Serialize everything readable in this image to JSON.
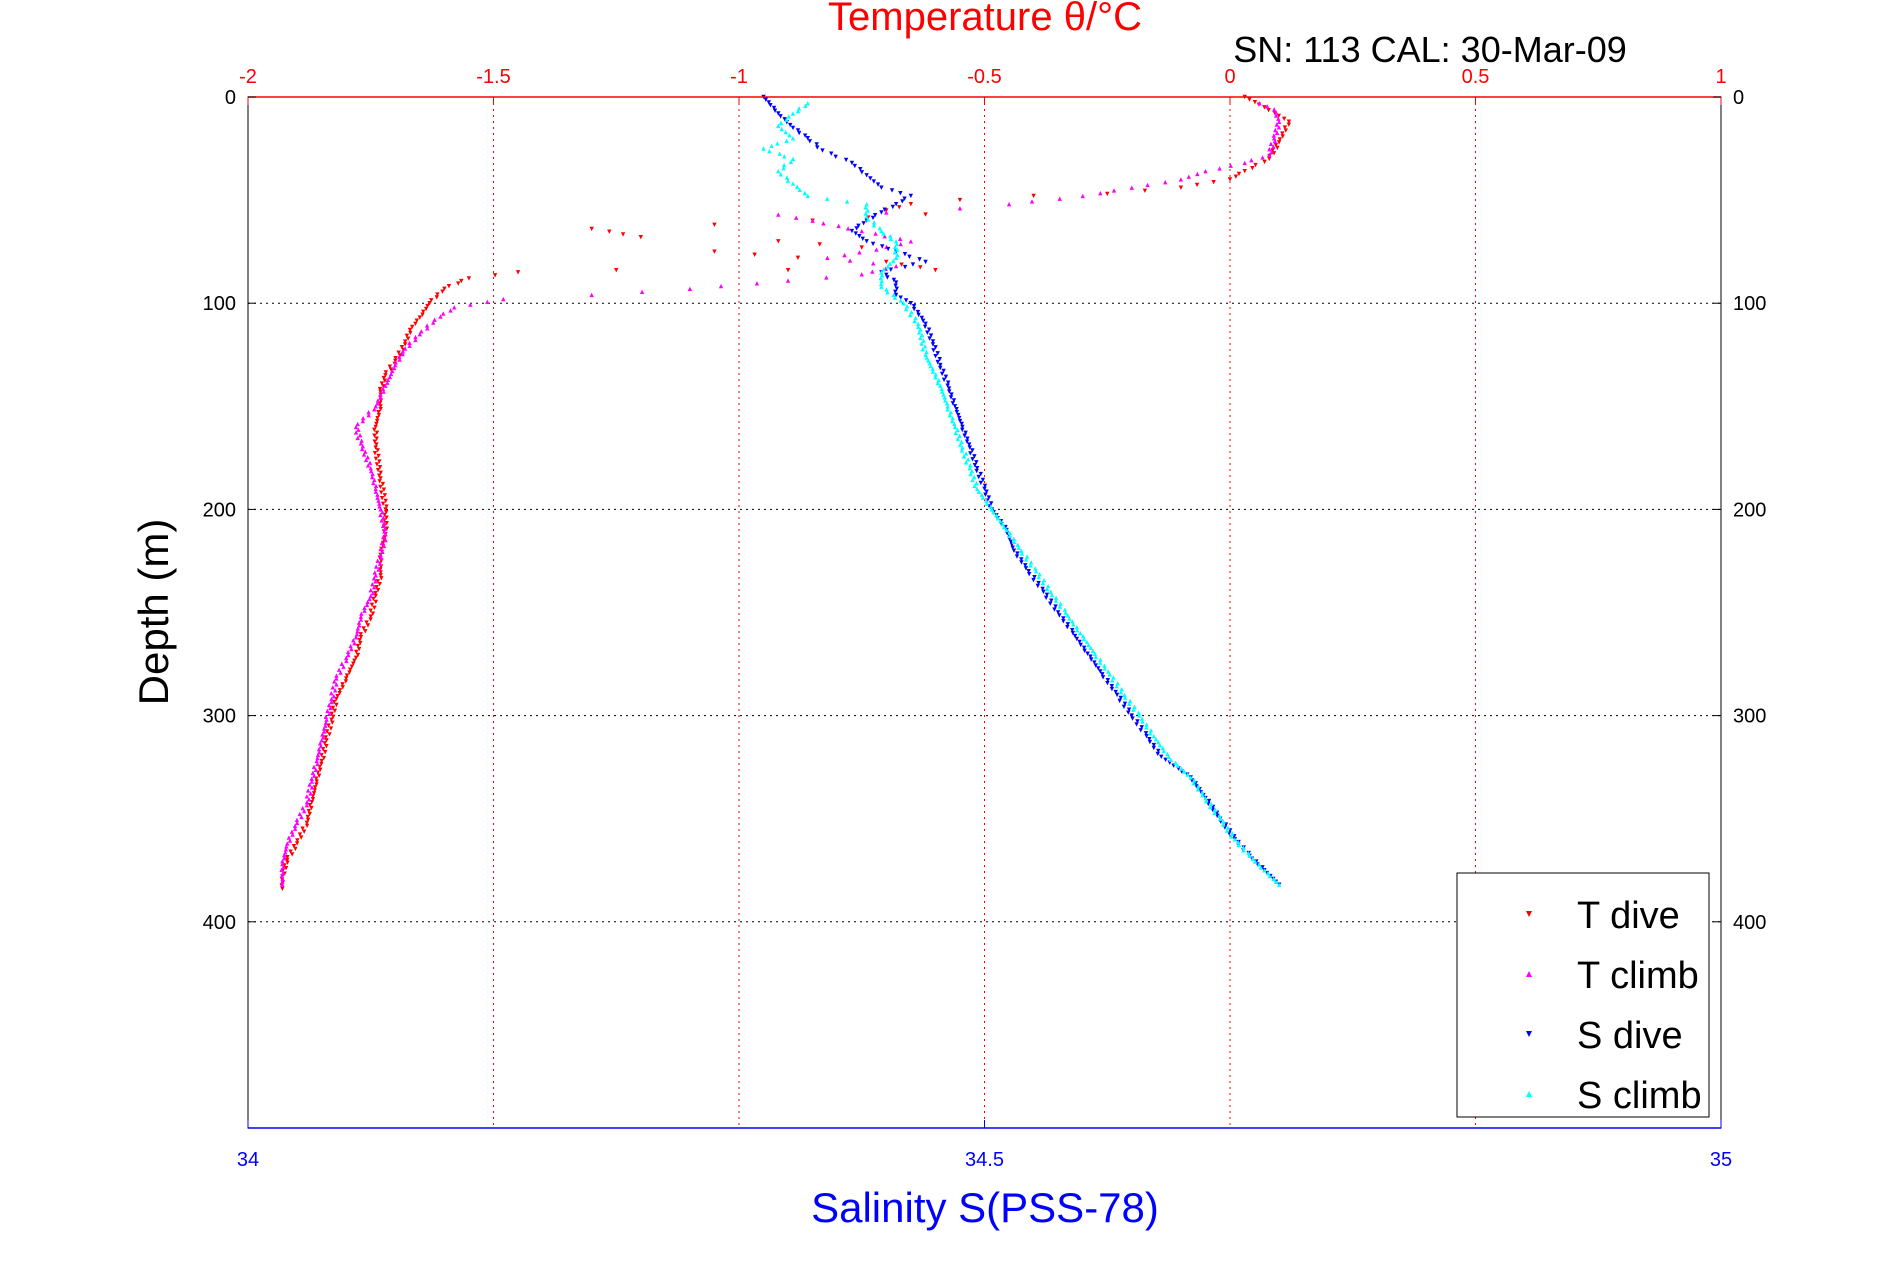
{
  "chart_data": {
    "type": "scatter",
    "title": "Temperature θ/°C",
    "subtitle": "SN: 113  CAL: 30-Mar-09",
    "ylabel": "Depth (m)",
    "xlabel_bottom": "Salinity S(PSS-78)",
    "x_top": {
      "label": "Temperature θ/°C",
      "range": [
        -2,
        1
      ],
      "ticks": [
        "-2",
        "-1.5",
        "-1",
        "-0.5",
        "0",
        "0.5",
        "1"
      ],
      "tick_values": [
        -2,
        -1.5,
        -1,
        -0.5,
        0,
        0.5,
        1
      ]
    },
    "x_bottom": {
      "label": "Salinity S(PSS-78)",
      "range": [
        34,
        35
      ],
      "ticks": [
        "34",
        "34.5",
        "35"
      ],
      "tick_values": [
        34,
        34.5,
        35
      ]
    },
    "y": {
      "range": [
        0,
        500
      ],
      "reversed": true,
      "ticks": [
        "0",
        "100",
        "200",
        "300",
        "400"
      ],
      "tick_values": [
        0,
        100,
        200,
        300,
        400
      ]
    },
    "grid": true,
    "legend_position": "bottom-right",
    "colors": {
      "temperature_axis": "#ff0000",
      "salinity_axis": "#0000ff",
      "frame": "#000000",
      "t_grid": "#ff0000",
      "depth_grid": "#000000"
    },
    "series": [
      {
        "name": "T dive",
        "axis": "temperature",
        "color": "#ff0000",
        "marker": "triangle-down",
        "points": [
          [
            0.03,
            0
          ],
          [
            0.07,
            5
          ],
          [
            0.12,
            12
          ],
          [
            0.1,
            22
          ],
          [
            0.08,
            30
          ],
          [
            0.03,
            36
          ],
          [
            0.0,
            40
          ],
          [
            -0.1,
            44
          ],
          [
            -0.25,
            47
          ],
          [
            -0.4,
            48
          ],
          [
            -0.55,
            50
          ],
          [
            -0.65,
            52
          ],
          [
            -0.7,
            55
          ],
          [
            -0.62,
            57
          ],
          [
            -0.85,
            60
          ],
          [
            -1.05,
            62
          ],
          [
            -1.3,
            64
          ],
          [
            -1.2,
            68
          ],
          [
            -0.92,
            70
          ],
          [
            -0.75,
            73
          ],
          [
            -1.05,
            75
          ],
          [
            -0.88,
            78
          ],
          [
            -0.7,
            80
          ],
          [
            -0.6,
            84
          ],
          [
            -0.9,
            84
          ],
          [
            -1.25,
            84
          ],
          [
            -1.45,
            85
          ],
          [
            -1.55,
            88
          ],
          [
            -1.6,
            93
          ],
          [
            -1.63,
            100
          ],
          [
            -1.65,
            107
          ],
          [
            -1.67,
            113
          ],
          [
            -1.68,
            120
          ],
          [
            -1.7,
            128
          ],
          [
            -1.72,
            135
          ],
          [
            -1.73,
            143
          ],
          [
            -1.73,
            150
          ],
          [
            -1.74,
            160
          ],
          [
            -1.74,
            170
          ],
          [
            -1.73,
            185
          ],
          [
            -1.72,
            200
          ],
          [
            -1.72,
            212
          ],
          [
            -1.73,
            222
          ],
          [
            -1.73,
            232
          ],
          [
            -1.74,
            242
          ],
          [
            -1.75,
            252
          ],
          [
            -1.77,
            262
          ],
          [
            -1.78,
            272
          ],
          [
            -1.8,
            282
          ],
          [
            -1.82,
            292
          ],
          [
            -1.83,
            302
          ],
          [
            -1.84,
            312
          ],
          [
            -1.85,
            322
          ],
          [
            -1.86,
            332
          ],
          [
            -1.87,
            342
          ],
          [
            -1.88,
            352
          ],
          [
            -1.9,
            362
          ],
          [
            -1.92,
            370
          ],
          [
            -1.93,
            378
          ],
          [
            -1.93,
            384
          ]
        ]
      },
      {
        "name": "T climb",
        "axis": "temperature",
        "color": "#ff00ff",
        "marker": "triangle-up",
        "points": [
          [
            -1.93,
            382
          ],
          [
            -1.93,
            372
          ],
          [
            -1.92,
            362
          ],
          [
            -1.9,
            352
          ],
          [
            -1.88,
            342
          ],
          [
            -1.87,
            332
          ],
          [
            -1.86,
            322
          ],
          [
            -1.85,
            312
          ],
          [
            -1.84,
            302
          ],
          [
            -1.83,
            292
          ],
          [
            -1.82,
            282
          ],
          [
            -1.8,
            272
          ],
          [
            -1.78,
            262
          ],
          [
            -1.77,
            252
          ],
          [
            -1.75,
            242
          ],
          [
            -1.74,
            232
          ],
          [
            -1.73,
            222
          ],
          [
            -1.72,
            212
          ],
          [
            -1.73,
            200
          ],
          [
            -1.74,
            190
          ],
          [
            -1.75,
            180
          ],
          [
            -1.77,
            168
          ],
          [
            -1.78,
            160
          ],
          [
            -1.74,
            150
          ],
          [
            -1.72,
            140
          ],
          [
            -1.7,
            130
          ],
          [
            -1.68,
            122
          ],
          [
            -1.65,
            115
          ],
          [
            -1.62,
            108
          ],
          [
            -1.58,
            102
          ],
          [
            -1.48,
            98
          ],
          [
            -1.3,
            96
          ],
          [
            -1.1,
            93
          ],
          [
            -0.9,
            89
          ],
          [
            -0.75,
            86
          ],
          [
            -0.68,
            82
          ],
          [
            -0.82,
            78
          ],
          [
            -0.72,
            74
          ],
          [
            -0.65,
            70
          ],
          [
            -0.75,
            65
          ],
          [
            -0.85,
            60
          ],
          [
            -0.92,
            57
          ],
          [
            -0.7,
            56
          ],
          [
            -0.55,
            54
          ],
          [
            -0.45,
            52
          ],
          [
            -0.3,
            48
          ],
          [
            -0.2,
            44
          ],
          [
            -0.1,
            40
          ],
          [
            -0.05,
            36
          ],
          [
            0.03,
            32
          ],
          [
            0.08,
            28
          ],
          [
            0.09,
            20
          ],
          [
            0.1,
            12
          ],
          [
            0.09,
            6
          ],
          [
            0.06,
            3
          ]
        ]
      },
      {
        "name": "S dive",
        "axis": "salinity",
        "color": "#0000ff",
        "marker": "triangle-down",
        "points": [
          [
            34.35,
            0
          ],
          [
            34.36,
            8
          ],
          [
            34.37,
            15
          ],
          [
            34.38,
            20
          ],
          [
            34.39,
            26
          ],
          [
            34.41,
            32
          ],
          [
            34.42,
            38
          ],
          [
            34.43,
            44
          ],
          [
            34.45,
            48
          ],
          [
            34.44,
            52
          ],
          [
            34.43,
            56
          ],
          [
            34.42,
            60
          ],
          [
            34.41,
            65
          ],
          [
            34.42,
            70
          ],
          [
            34.44,
            75
          ],
          [
            34.46,
            80
          ],
          [
            34.43,
            85
          ],
          [
            34.44,
            90
          ],
          [
            34.44,
            96
          ],
          [
            34.45,
            100
          ],
          [
            34.46,
            110
          ],
          [
            34.465,
            120
          ],
          [
            34.47,
            130
          ],
          [
            34.475,
            140
          ],
          [
            34.48,
            150
          ],
          [
            34.485,
            160
          ],
          [
            34.49,
            170
          ],
          [
            34.495,
            180
          ],
          [
            34.5,
            190
          ],
          [
            34.505,
            200
          ],
          [
            34.515,
            210
          ],
          [
            34.52,
            220
          ],
          [
            34.53,
            230
          ],
          [
            34.54,
            240
          ],
          [
            34.55,
            250
          ],
          [
            34.56,
            260
          ],
          [
            34.57,
            270
          ],
          [
            34.58,
            280
          ],
          [
            34.59,
            290
          ],
          [
            34.6,
            300
          ],
          [
            34.61,
            310
          ],
          [
            34.62,
            320
          ],
          [
            34.64,
            330
          ],
          [
            34.65,
            340
          ],
          [
            34.66,
            350
          ],
          [
            34.67,
            360
          ],
          [
            34.68,
            368
          ],
          [
            34.69,
            375
          ],
          [
            34.7,
            382
          ]
        ]
      },
      {
        "name": "S climb",
        "axis": "salinity",
        "color": "#00ffff",
        "marker": "triangle-up",
        "points": [
          [
            34.7,
            382
          ],
          [
            34.69,
            375
          ],
          [
            34.68,
            368
          ],
          [
            34.67,
            360
          ],
          [
            34.66,
            350
          ],
          [
            34.65,
            340
          ],
          [
            34.64,
            330
          ],
          [
            34.625,
            320
          ],
          [
            34.615,
            310
          ],
          [
            34.605,
            300
          ],
          [
            34.595,
            290
          ],
          [
            34.585,
            280
          ],
          [
            34.575,
            270
          ],
          [
            34.565,
            260
          ],
          [
            34.555,
            250
          ],
          [
            34.545,
            240
          ],
          [
            34.535,
            230
          ],
          [
            34.525,
            220
          ],
          [
            34.515,
            210
          ],
          [
            34.505,
            200
          ],
          [
            34.495,
            190
          ],
          [
            34.49,
            180
          ],
          [
            34.485,
            170
          ],
          [
            34.48,
            160
          ],
          [
            34.475,
            150
          ],
          [
            34.47,
            140
          ],
          [
            34.46,
            125
          ],
          [
            34.455,
            110
          ],
          [
            34.445,
            100
          ],
          [
            34.43,
            92
          ],
          [
            34.43,
            85
          ],
          [
            34.44,
            78
          ],
          [
            34.44,
            70
          ],
          [
            34.43,
            65
          ],
          [
            34.42,
            58
          ],
          [
            34.42,
            52
          ],
          [
            34.38,
            48
          ],
          [
            34.37,
            42
          ],
          [
            34.36,
            36
          ],
          [
            34.37,
            30
          ],
          [
            34.35,
            25
          ],
          [
            34.37,
            20
          ],
          [
            34.36,
            14
          ],
          [
            34.37,
            8
          ],
          [
            34.38,
            3
          ]
        ]
      }
    ]
  }
}
